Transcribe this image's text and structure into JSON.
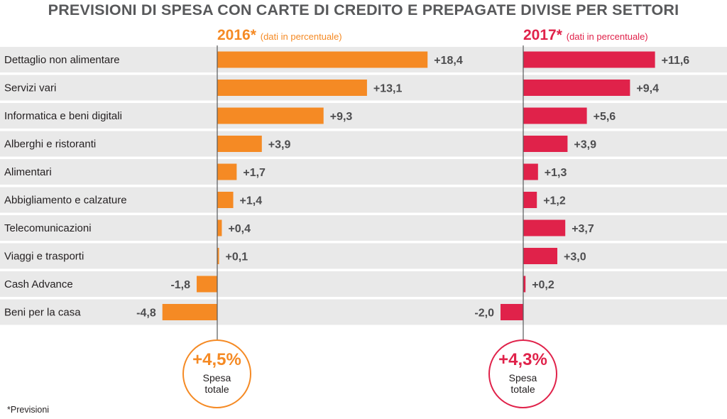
{
  "chart_data": {
    "type": "bar",
    "title": "PREVISIONI DI SPESA CON CARTE DI CREDITO E PREPAGATE DIVISE PER SETTORI",
    "categories": [
      "Dettaglio non alimentare",
      "Servizi vari",
      "Informatica e beni digitali",
      "Alberghi e ristoranti",
      "Alimentari",
      "Abbigliamento e calzature",
      "Telecomunicazioni",
      "Viaggi e trasporti",
      "Cash Advance",
      "Beni per la casa"
    ],
    "series": [
      {
        "name": "2016*",
        "subtitle": "(dati in percentuale)",
        "color": "#f58a24",
        "values": [
          18.4,
          13.1,
          9.3,
          3.9,
          1.7,
          1.4,
          0.4,
          0.1,
          -1.8,
          -4.8
        ],
        "labels": [
          "+18,4",
          "+13,1",
          "+9,3",
          "+3,9",
          "+1,7",
          "+1,4",
          "+0,4",
          "+0,1",
          "-1,8",
          "-4,8"
        ],
        "total": {
          "value": "+4,5%",
          "label_line1": "Spesa",
          "label_line2": "totale"
        }
      },
      {
        "name": "2017*",
        "subtitle": "(dati in percentuale)",
        "color": "#e0224a",
        "values": [
          11.6,
          9.4,
          5.6,
          3.9,
          1.3,
          1.2,
          3.7,
          3.0,
          0.2,
          -2.0
        ],
        "labels": [
          "+11,6",
          "+9,4",
          "+5,6",
          "+3,9",
          "+1,3",
          "+1,2",
          "+3,7",
          "+3,0",
          "+0,2",
          "-2,0"
        ],
        "total": {
          "value": "+4,3%",
          "label_line1": "Spesa",
          "label_line2": "totale"
        }
      }
    ],
    "footnote": "*Previsioni"
  }
}
